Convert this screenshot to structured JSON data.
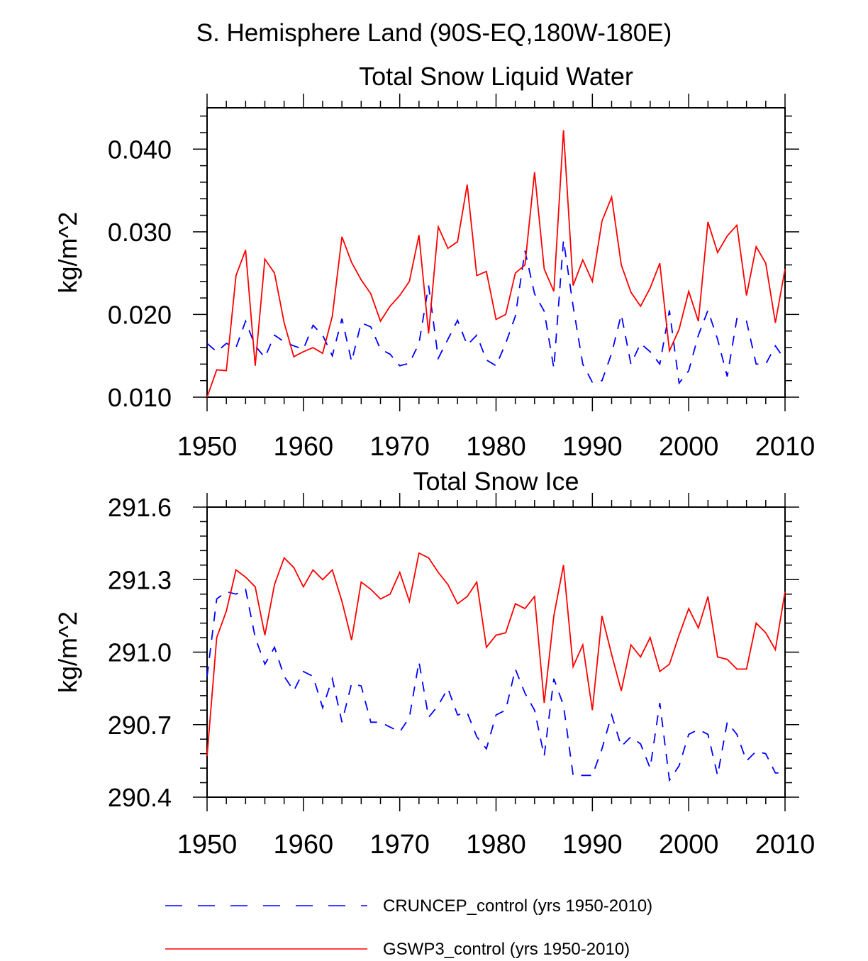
{
  "figure_title": "S. Hemisphere Land (90S-EQ,180W-180E)",
  "legend": [
    {
      "label": "CRUNCEP_control (yrs 1950-2010)",
      "color": "#0000ff",
      "style": "dashed"
    },
    {
      "label": "GSWP3_control (yrs 1950-2010)",
      "color": "#ff0000",
      "style": "solid"
    }
  ],
  "chart_data": [
    {
      "type": "line",
      "title": "Total Snow Liquid Water",
      "xlabel": "",
      "ylabel": "kg/m^2",
      "xlim": [
        1950,
        2010
      ],
      "ylim": [
        0.01,
        0.045
      ],
      "xticks": [
        "1950",
        "1960",
        "1970",
        "1980",
        "1990",
        "2000",
        "2010"
      ],
      "yticks": [
        "0.010",
        "0.020",
        "0.030",
        "0.040"
      ],
      "grid": false,
      "x": [
        1950,
        1951,
        1952,
        1953,
        1954,
        1955,
        1956,
        1957,
        1958,
        1959,
        1960,
        1961,
        1962,
        1963,
        1964,
        1965,
        1966,
        1967,
        1968,
        1969,
        1970,
        1971,
        1972,
        1973,
        1974,
        1975,
        1976,
        1977,
        1978,
        1979,
        1980,
        1981,
        1982,
        1983,
        1984,
        1985,
        1986,
        1987,
        1988,
        1989,
        1990,
        1991,
        1992,
        1993,
        1994,
        1995,
        1996,
        1997,
        1998,
        1999,
        2000,
        2001,
        2002,
        2003,
        2004,
        2005,
        2006,
        2007,
        2008,
        2009,
        2010
      ],
      "series": [
        {
          "name": "CRUNCEP_control (yrs 1950-2010)",
          "color": "#0000ff",
          "style": "dashed",
          "values": [
            0.0165,
            0.0155,
            0.0165,
            0.016,
            0.0192,
            0.0162,
            0.0148,
            0.0175,
            0.0167,
            0.0162,
            0.0158,
            0.0187,
            0.0175,
            0.015,
            0.0195,
            0.0143,
            0.019,
            0.0185,
            0.0158,
            0.0152,
            0.0138,
            0.0141,
            0.0165,
            0.0235,
            0.0147,
            0.017,
            0.0193,
            0.0163,
            0.0175,
            0.0145,
            0.0138,
            0.0165,
            0.0198,
            0.0277,
            0.0225,
            0.0204,
            0.0135,
            0.029,
            0.021,
            0.014,
            0.0118,
            0.012,
            0.0153,
            0.02,
            0.014,
            0.0165,
            0.0155,
            0.014,
            0.0205,
            0.0117,
            0.0132,
            0.0175,
            0.0205,
            0.017,
            0.0125,
            0.0195,
            0.0192,
            0.014,
            0.014,
            0.0162,
            0.0145
          ]
        },
        {
          "name": "GSWP3_control (yrs 1950-2010)",
          "color": "#ff0000",
          "style": "solid",
          "values": [
            0.01,
            0.0133,
            0.0132,
            0.0247,
            0.0278,
            0.0138,
            0.0267,
            0.025,
            0.019,
            0.0149,
            0.0155,
            0.016,
            0.0153,
            0.0198,
            0.0294,
            0.0263,
            0.0242,
            0.0225,
            0.0192,
            0.021,
            0.0223,
            0.024,
            0.0296,
            0.0177,
            0.0306,
            0.028,
            0.0288,
            0.0357,
            0.0247,
            0.0252,
            0.0194,
            0.02,
            0.025,
            0.026,
            0.0372,
            0.0255,
            0.0228,
            0.0423,
            0.0235,
            0.0266,
            0.024,
            0.0313,
            0.0342,
            0.026,
            0.0227,
            0.021,
            0.0232,
            0.0262,
            0.0156,
            0.0182,
            0.0228,
            0.0192,
            0.0312,
            0.0275,
            0.0295,
            0.0308,
            0.0223,
            0.0282,
            0.0262,
            0.019,
            0.0255
          ]
        }
      ]
    },
    {
      "type": "line",
      "title": "Total Snow Ice",
      "xlabel": "",
      "ylabel": "kg/m^2",
      "xlim": [
        1950,
        2010
      ],
      "ylim": [
        290.4,
        291.6
      ],
      "xticks": [
        "1950",
        "1960",
        "1970",
        "1980",
        "1990",
        "2000",
        "2010"
      ],
      "yticks": [
        "290.4",
        "290.7",
        "291.0",
        "291.3",
        "291.6"
      ],
      "grid": false,
      "x": [
        1950,
        1951,
        1952,
        1953,
        1954,
        1955,
        1956,
        1957,
        1958,
        1959,
        1960,
        1961,
        1962,
        1963,
        1964,
        1965,
        1966,
        1967,
        1968,
        1969,
        1970,
        1971,
        1972,
        1973,
        1974,
        1975,
        1976,
        1977,
        1978,
        1979,
        1980,
        1981,
        1982,
        1983,
        1984,
        1985,
        1986,
        1987,
        1988,
        1989,
        1990,
        1991,
        1992,
        1993,
        1994,
        1995,
        1996,
        1997,
        1998,
        1999,
        2000,
        2001,
        2002,
        2003,
        2004,
        2005,
        2006,
        2007,
        2008,
        2009,
        2010
      ],
      "series": [
        {
          "name": "CRUNCEP_control (yrs 1950-2010)",
          "color": "#0000ff",
          "style": "dashed",
          "values": [
            290.9,
            291.22,
            291.25,
            291.24,
            291.26,
            291.06,
            290.95,
            291.02,
            290.9,
            290.84,
            290.92,
            290.9,
            290.77,
            290.89,
            290.71,
            290.87,
            290.86,
            290.71,
            290.71,
            290.69,
            290.67,
            290.73,
            290.96,
            290.73,
            290.78,
            290.85,
            290.74,
            290.75,
            290.65,
            290.6,
            290.74,
            290.76,
            290.93,
            290.83,
            290.76,
            290.57,
            290.89,
            290.78,
            290.49,
            290.49,
            290.49,
            290.6,
            290.74,
            290.61,
            290.65,
            290.62,
            290.52,
            290.79,
            290.47,
            290.53,
            290.66,
            290.68,
            290.66,
            290.49,
            290.71,
            290.66,
            290.55,
            290.59,
            290.58,
            290.5,
            290.5
          ]
        },
        {
          "name": "GSWP3_control (yrs 1950-2010)",
          "color": "#ff0000",
          "style": "solid",
          "values": [
            290.57,
            291.06,
            291.17,
            291.34,
            291.31,
            291.27,
            291.07,
            291.28,
            291.39,
            291.35,
            291.27,
            291.34,
            291.3,
            291.34,
            291.21,
            291.05,
            291.29,
            291.26,
            291.22,
            291.24,
            291.33,
            291.21,
            291.41,
            291.39,
            291.33,
            291.28,
            291.2,
            291.23,
            291.29,
            291.02,
            291.07,
            291.08,
            291.2,
            291.18,
            291.23,
            290.79,
            291.15,
            291.36,
            290.94,
            291.03,
            290.76,
            291.15,
            290.99,
            290.84,
            291.03,
            290.98,
            291.06,
            290.92,
            290.95,
            291.07,
            291.18,
            291.1,
            291.23,
            290.98,
            290.97,
            290.93,
            290.93,
            291.12,
            291.08,
            291.01,
            291.25
          ]
        }
      ]
    }
  ]
}
